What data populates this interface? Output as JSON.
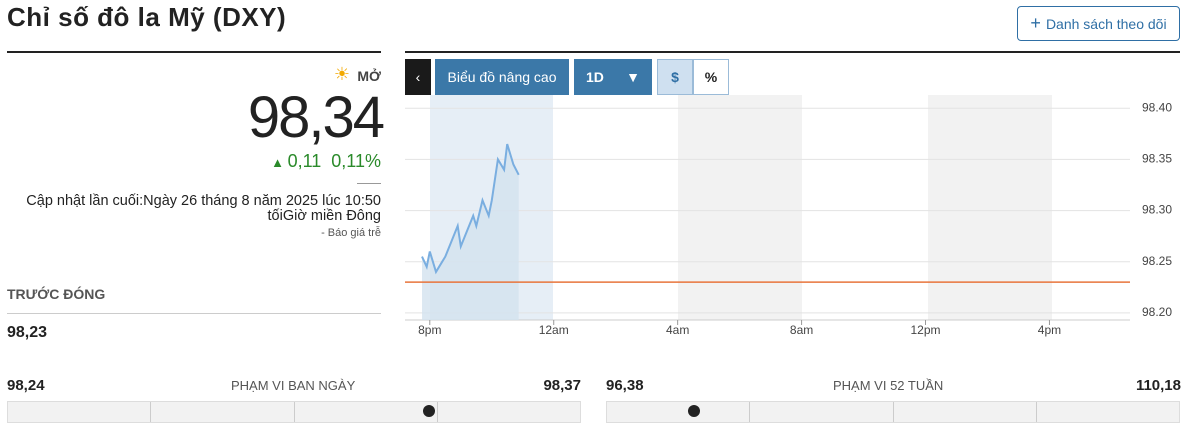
{
  "header": {
    "title": "Chỉ số đô la Mỹ (DXY)",
    "watchlist_button": "Danh sách theo dõi"
  },
  "quote": {
    "status": "MỞ",
    "price": "98,34",
    "change": "0,11",
    "change_percent": "0,11%",
    "updated": "Cập nhật lần cuối:Ngày 26 tháng 8 năm 2025 lúc 10:50 tốiGiờ miền Đông",
    "delay_note": "-  Báo giá trễ"
  },
  "previous_close": {
    "label": "TRƯỚC ĐÓNG",
    "value": "98,23"
  },
  "toolbar": {
    "advanced_chart": "Biểu đồ nâng cao",
    "interval": "1D",
    "dollar": "$",
    "percent": "%"
  },
  "chart": {
    "type": "line",
    "color": "#7aaee0",
    "reference_line": 98.23,
    "reference_color": "#e8743b",
    "x": [
      19.75,
      19.9,
      20.0,
      20.2,
      20.4,
      20.5,
      20.7,
      20.9,
      21.0,
      21.2,
      21.4,
      21.5,
      21.7,
      21.9,
      22.0,
      22.2,
      22.4,
      22.5,
      22.7,
      22.87
    ],
    "values": [
      98.255,
      98.245,
      98.26,
      98.24,
      98.25,
      98.255,
      98.27,
      98.285,
      98.265,
      98.28,
      98.295,
      98.285,
      98.31,
      98.295,
      98.31,
      98.35,
      98.34,
      98.365,
      98.345,
      98.335
    ],
    "xlim": [
      19.2,
      42.6
    ],
    "xticks": [
      {
        "value": 20,
        "label": "8pm"
      },
      {
        "value": 24,
        "label": "12am"
      },
      {
        "value": 28,
        "label": "4am"
      },
      {
        "value": 32,
        "label": "8am"
      },
      {
        "value": 36,
        "label": "12pm"
      },
      {
        "value": 40,
        "label": "4pm"
      }
    ],
    "ylim": [
      98.193,
      98.413
    ],
    "yticks": [
      {
        "value": 98.2,
        "label": "98.20"
      },
      98.25,
      {
        "value": 98.3,
        "label": "98.30"
      },
      98.35,
      {
        "value": 98.4,
        "label": "98.40"
      }
    ],
    "grid": true
  },
  "ranges": [
    {
      "low": "98,24",
      "label": "PHẠM VI BAN NGÀY",
      "high": "98,37"
    },
    {
      "low": "96,38",
      "label": "PHẠM VI 52 TUẦN",
      "high": "110,18"
    }
  ]
}
